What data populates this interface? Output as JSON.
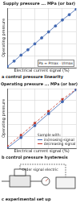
{
  "chart_data": [
    {
      "type": "line",
      "title": "Supply pressure ... MPa (or bar)",
      "x_label": "Electrical current signal (%)",
      "y_label": "Operating pressure",
      "annotation": "Pa = Pmax · I/Imax",
      "caption": "a  control pressure linearity",
      "x": [
        0,
        10,
        20,
        30,
        40,
        50,
        60,
        70,
        80,
        90,
        100
      ],
      "values": [
        2,
        11,
        21,
        30,
        40,
        50,
        60,
        70,
        80,
        89,
        98
      ],
      "color": "#3f66b0",
      "marker": "circle",
      "line_style": "solid",
      "xlim": [
        0,
        100
      ],
      "ylim": [
        0,
        100
      ],
      "xticks": [
        0,
        20,
        40,
        60,
        80,
        100
      ],
      "yticks": [
        0,
        20,
        40,
        60,
        80,
        100
      ],
      "grid": true,
      "tick_labels": false
    },
    {
      "type": "line",
      "title": "Operating pressure ... MPa (or bar)",
      "x_label": "Electrical current signal (%)",
      "y_label": "Operating pressure",
      "legend_title": "Sample with:",
      "caption": "b  control pressure hysteresis",
      "x": [
        0,
        20,
        40,
        60,
        80,
        100
      ],
      "series": [
        {
          "name": "increasing signal",
          "color": "#3f66b0",
          "marker": "circle",
          "line_style": "solid",
          "values": [
            0,
            18,
            38,
            58,
            78,
            98
          ]
        },
        {
          "name": "decreasing signal",
          "color": "#c0392b",
          "marker": "rect",
          "line_style": "dashed",
          "values": [
            3,
            22,
            42,
            62,
            82,
            99
          ]
        }
      ],
      "xlim": [
        0,
        100
      ],
      "ylim": [
        0,
        100
      ],
      "xticks": [
        0,
        20,
        40,
        60,
        80,
        100
      ],
      "yticks": [
        0,
        20,
        40,
        60,
        80,
        100
      ],
      "grid": true,
      "tick_labels": false,
      "legend": "lower right"
    }
  ],
  "diagram": {
    "label": "Order signal electric",
    "caption": "c  experimental set up"
  }
}
